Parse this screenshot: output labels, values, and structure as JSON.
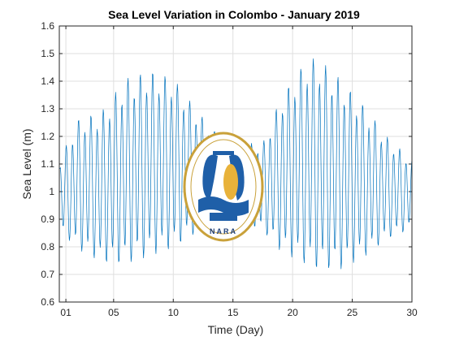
{
  "chart_data": {
    "type": "line",
    "title": "Sea Level Variation in Colombo - January 2019",
    "xlabel": "Time (Day)",
    "ylabel": "Sea Level (m)",
    "xlim": [
      0.45,
      30
    ],
    "ylim": [
      0.6,
      1.6
    ],
    "grid": true,
    "x_ticks": [
      1,
      5,
      10,
      15,
      20,
      25,
      30
    ],
    "x_tick_labels": [
      "01",
      "05",
      "10",
      "15",
      "20",
      "25",
      "30"
    ],
    "y_ticks": [
      0.6,
      0.7,
      0.8,
      0.9,
      1.0,
      1.1,
      1.2,
      1.3,
      1.4,
      1.5,
      1.6
    ],
    "y_tick_labels": [
      "0.6",
      "0.7",
      "0.8",
      "0.9",
      "1",
      "1.1",
      "1.2",
      "1.3",
      "1.4",
      "1.5",
      "1.6"
    ],
    "series": [
      {
        "color": "#0072bd",
        "sampling_interval_days": 0.0417,
        "x": [
          0.5,
          30
        ],
        "semidiurnal_envelope": {
          "day": [
            0.5,
            2,
            4,
            6,
            8,
            10,
            12,
            14,
            16,
            17.5,
            19,
            21,
            22,
            24,
            26,
            28,
            30
          ],
          "high": [
            1.12,
            1.27,
            1.3,
            1.42,
            1.45,
            1.42,
            1.3,
            1.2,
            1.18,
            1.18,
            1.35,
            1.48,
            1.5,
            1.42,
            1.32,
            1.2,
            1.12
          ],
          "low": [
            0.85,
            0.78,
            0.73,
            0.72,
            0.75,
            0.78,
            0.84,
            0.88,
            0.88,
            0.85,
            0.77,
            0.72,
            0.7,
            0.7,
            0.75,
            0.82,
            0.86
          ]
        }
      }
    ]
  },
  "logo": {
    "name": "NARA seal",
    "text": "NARA",
    "colors": {
      "ring": "#c9a13a",
      "blue": "#1f5fa8",
      "gold": "#e8b23a"
    }
  }
}
